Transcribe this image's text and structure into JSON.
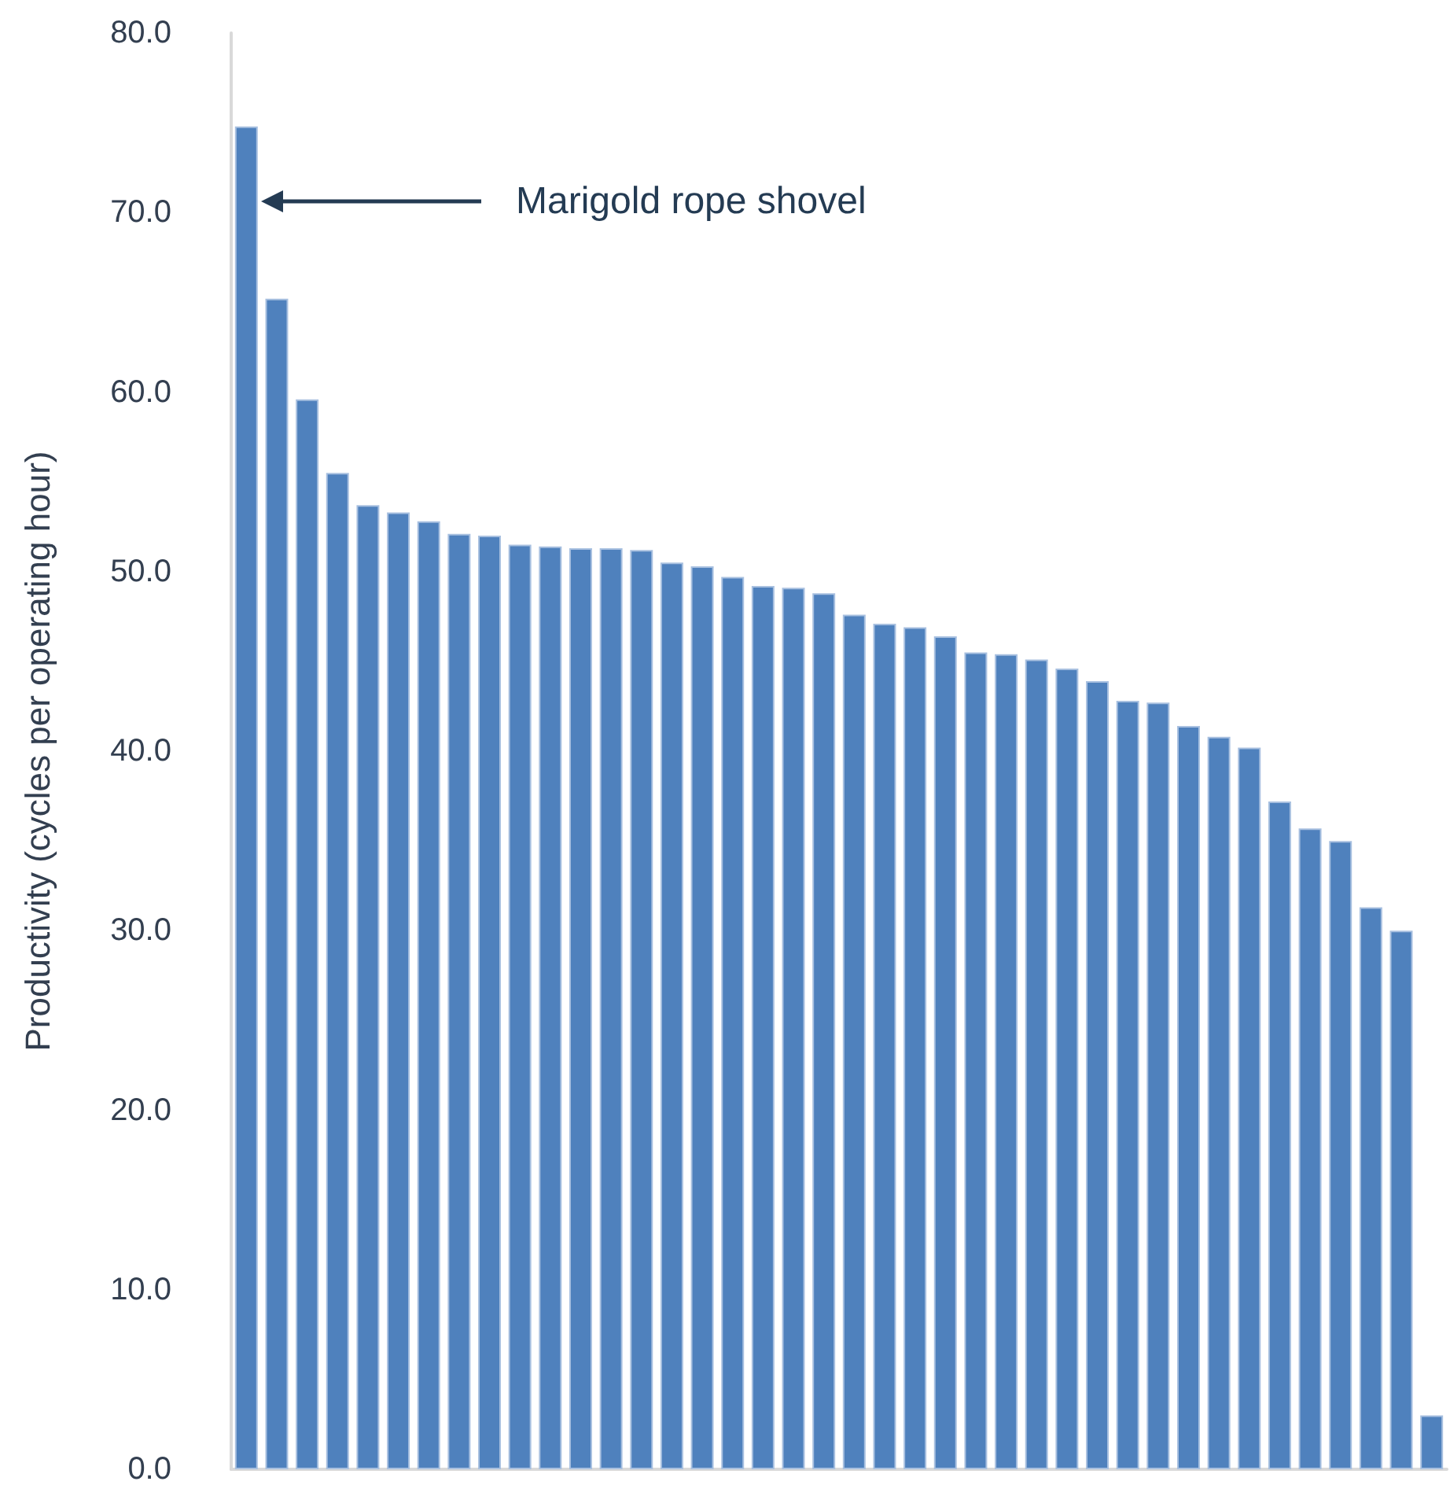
{
  "chart_data": {
    "type": "bar",
    "ylabel": "Productivity (cycles per operating hour)",
    "categories": [
      null,
      null,
      null,
      null,
      null,
      null,
      null,
      null,
      null,
      null,
      null,
      null,
      null,
      null,
      null,
      null,
      null,
      null,
      null,
      null,
      null,
      null,
      null,
      null,
      null,
      null,
      null,
      null,
      null,
      null,
      null,
      null,
      null,
      null,
      null,
      null,
      null,
      null,
      null,
      null
    ],
    "values": [
      74.8,
      65.2,
      59.6,
      55.5,
      53.7,
      53.3,
      52.8,
      52.1,
      52.0,
      51.5,
      51.4,
      51.3,
      51.3,
      51.2,
      50.5,
      50.3,
      49.7,
      49.2,
      49.1,
      48.8,
      47.6,
      47.1,
      46.9,
      46.4,
      45.5,
      45.4,
      45.1,
      44.6,
      43.9,
      42.8,
      42.7,
      41.4,
      40.8,
      40.2,
      37.2,
      35.7,
      35.0,
      31.3,
      30.0,
      3.0
    ],
    "color": "#4f81bd",
    "ylim": [
      0,
      80
    ],
    "yticks": [
      {
        "value": 0,
        "label": "0.0"
      },
      {
        "value": 10,
        "label": "10.0"
      },
      {
        "value": 20,
        "label": "20.0"
      },
      {
        "value": 30,
        "label": "30.0"
      },
      {
        "value": 40,
        "label": "40.0"
      },
      {
        "value": 50,
        "label": "50.0"
      },
      {
        "value": 60,
        "label": "60.0"
      },
      {
        "value": 70,
        "label": "70.0"
      },
      {
        "value": 80,
        "label": "80.0"
      }
    ],
    "tick_labels": "y",
    "grid": false,
    "annotations": [
      "Marigold rope shovel"
    ]
  }
}
